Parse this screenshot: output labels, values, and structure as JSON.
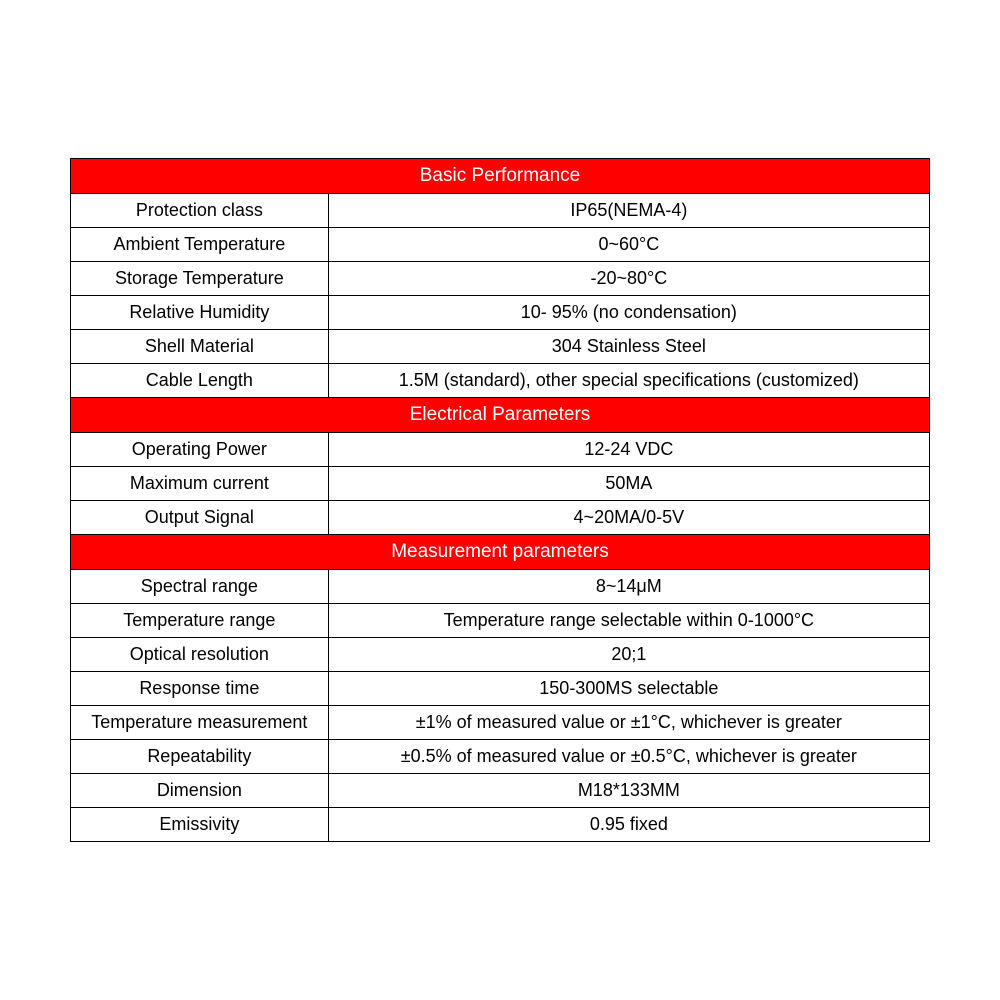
{
  "table": {
    "type": "table",
    "background_color": "#ffffff",
    "border_color": "#000000",
    "header_bg_color": "#ff0000",
    "header_text_color": "#ffffff",
    "cell_text_color": "#000000",
    "font_size": 18,
    "header_font_size": 19,
    "column_widths": [
      "30%",
      "70%"
    ],
    "sections": [
      {
        "header": "Basic Performance",
        "rows": [
          {
            "label": "Protection class",
            "value": "IP65(NEMA-4)"
          },
          {
            "label": "Ambient Temperature",
            "value": "0~60°C"
          },
          {
            "label": "Storage Temperature",
            "value": "-20~80°C"
          },
          {
            "label": "Relative Humidity",
            "value": "10- 95% (no condensation)"
          },
          {
            "label": "Shell Material",
            "value": "304 Stainless Steel"
          },
          {
            "label": "Cable Length",
            "value": "1.5M (standard), other special specifications (customized)"
          }
        ]
      },
      {
        "header": "Electrical Parameters",
        "rows": [
          {
            "label": "Operating Power",
            "value": "12-24 VDC"
          },
          {
            "label": "Maximum current",
            "value": "50MA"
          },
          {
            "label": "Output Signal",
            "value": "4~20MA/0-5V"
          }
        ]
      },
      {
        "header": "Measurement parameters",
        "rows": [
          {
            "label": "Spectral range",
            "value": "8~14μM"
          },
          {
            "label": "Temperature range",
            "value": "Temperature range selectable within 0-1000°C"
          },
          {
            "label": "Optical resolution",
            "value": "20;1"
          },
          {
            "label": "Response time",
            "value": "150-300MS selectable"
          },
          {
            "label": "Temperature measurement",
            "value": "±1% of measured value or ±1°C, whichever is greater"
          },
          {
            "label": "Repeatability",
            "value": "±0.5% of measured value or ±0.5°C, whichever is greater"
          },
          {
            "label": "Dimension",
            "value": "M18*133MM"
          },
          {
            "label": "Emissivity",
            "value": "0.95 fixed"
          }
        ]
      }
    ]
  }
}
